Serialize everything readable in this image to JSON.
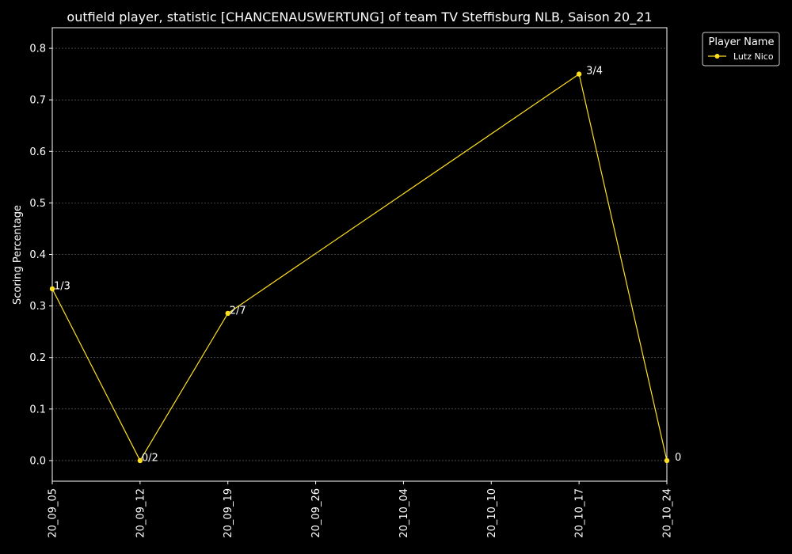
{
  "chart_data": {
    "type": "line",
    "title": "outfield player, statistic [CHANCENAUSWERTUNG] of team TV Steffisburg NLB, Saison 20_21",
    "xlabel": "",
    "ylabel": "Scoring Percentage",
    "x_ticks": [
      "20_09_05",
      "20_09_12",
      "20_09_19",
      "20_09_26",
      "20_10_04",
      "20_10_10",
      "20_10_17",
      "20_10_24"
    ],
    "y_ticks": [
      "0.0",
      "0.1",
      "0.2",
      "0.3",
      "0.4",
      "0.5",
      "0.6",
      "0.7",
      "0.8"
    ],
    "ylim": [
      -0.04,
      0.84
    ],
    "grid": true,
    "legend": {
      "title": "Player Name",
      "placement": "top-right, outside plot"
    },
    "series": [
      {
        "name": "Lutz Nico",
        "color": "#ffe01e",
        "points": [
          {
            "x": "20_09_05",
            "y": 0.3333,
            "label": "1/3"
          },
          {
            "x": "20_09_12",
            "y": 0.0,
            "label": "0/2"
          },
          {
            "x": "20_09_19",
            "y": 0.2857,
            "label": "2/7"
          },
          {
            "x": "20_10_17",
            "y": 0.75,
            "label": "3/4"
          },
          {
            "x": "20_10_24",
            "y": 0.0,
            "label": "0"
          }
        ]
      }
    ],
    "colors": {
      "background": "#000000",
      "text": "#ffffff",
      "grid": "#7a7a7a"
    }
  }
}
